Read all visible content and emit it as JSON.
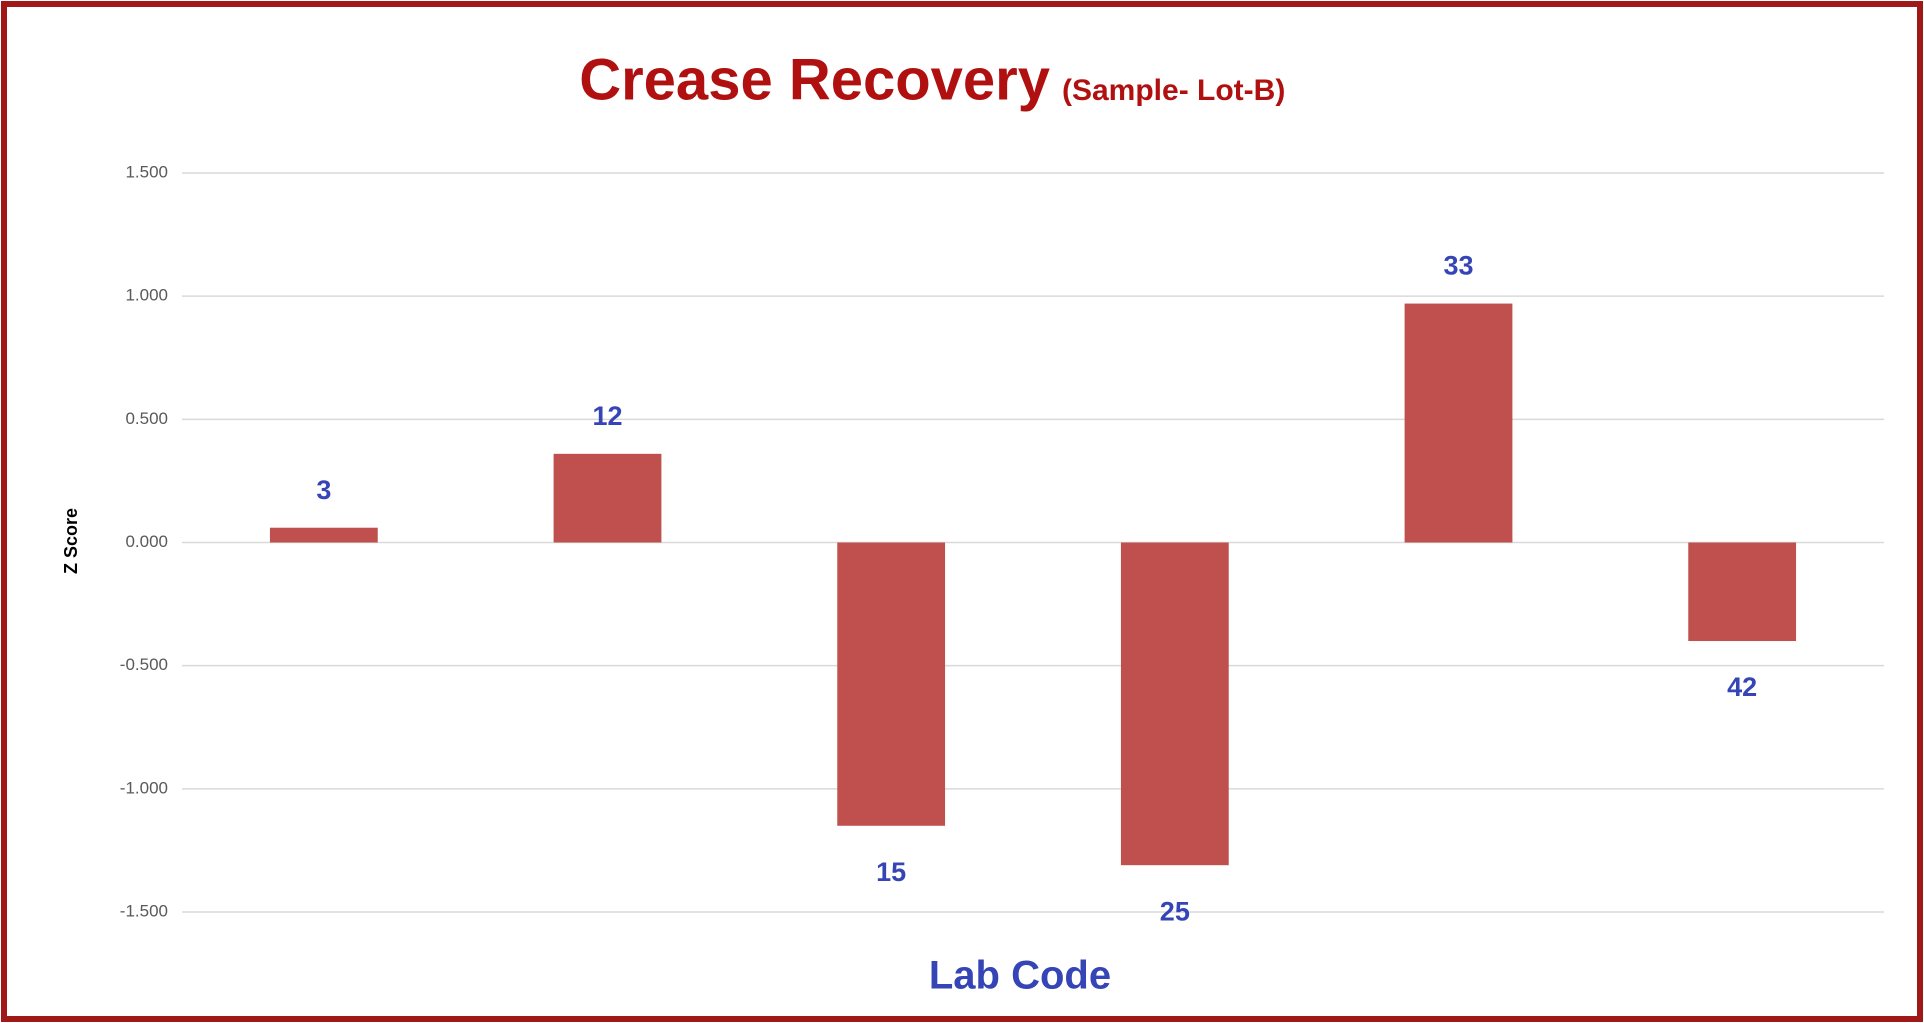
{
  "chart_data": {
    "type": "bar",
    "title": "Crease Recovery",
    "subtitle": "(Sample- Lot-B)",
    "x_label": "Lab Code",
    "y_label": "Z Score",
    "categories": [
      "3",
      "12",
      "15",
      "25",
      "33",
      "42"
    ],
    "values": [
      0.06,
      0.36,
      -1.15,
      -1.31,
      0.97,
      -0.4
    ],
    "color": "#c0504d",
    "ylim": [
      -1.5,
      1.5
    ],
    "yticks": [
      {
        "value": -1.5,
        "label": "-1.500"
      },
      {
        "value": -1.0,
        "label": "-1.000"
      },
      {
        "value": -0.5,
        "label": "-0.500"
      },
      {
        "value": 0,
        "label": "0.000"
      },
      {
        "value": 0.5,
        "label": "0.500"
      },
      {
        "value": 1.0,
        "label": "1.000"
      },
      {
        "value": 1.5,
        "label": "1.500"
      }
    ],
    "grid": true
  }
}
